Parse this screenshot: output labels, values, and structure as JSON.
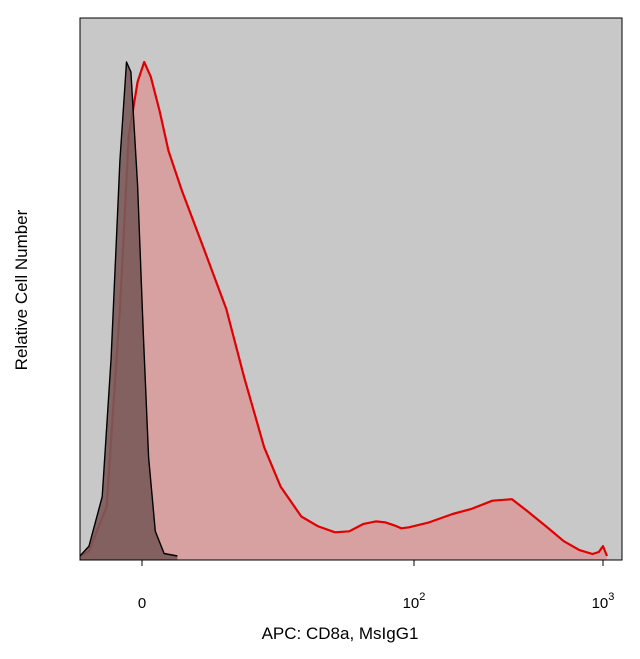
{
  "chart_data": {
    "type": "area",
    "xlabel": "APC: CD8a, MsIgG1",
    "ylabel": "Relative Cell Number",
    "x_scale": "biexponential",
    "x_ticks": [
      {
        "value": 0,
        "label": "0",
        "sup": ""
      },
      {
        "value": 100,
        "label": "10",
        "sup": "2"
      },
      {
        "value": 1000,
        "label": "10",
        "sup": "3"
      }
    ],
    "ylim": [
      0,
      1
    ],
    "grid": false,
    "legend": "none",
    "background": "#c8c8c8",
    "series": [
      {
        "style": "isotype",
        "stroke": "#000000",
        "fill": "#7a5a5a",
        "points": [
          [
            -20,
            0
          ],
          [
            -12,
            0.02
          ],
          [
            -9,
            0.12
          ],
          [
            -7,
            0.4
          ],
          [
            -5,
            0.8
          ],
          [
            -3.5,
            1.0
          ],
          [
            -2.5,
            0.98
          ],
          [
            -1,
            0.75
          ],
          [
            0.3,
            0.45
          ],
          [
            1.5,
            0.2
          ],
          [
            3,
            0.05
          ],
          [
            5,
            0.005
          ],
          [
            8,
            0
          ]
        ]
      },
      {
        "style": "stained",
        "stroke": "#e00000",
        "fill": "#d99a9a",
        "points": [
          [
            -20,
            0
          ],
          [
            -12,
            0.01
          ],
          [
            -8,
            0.1
          ],
          [
            -5,
            0.5
          ],
          [
            -3,
            0.85
          ],
          [
            -1,
            0.96
          ],
          [
            0.5,
            1.0
          ],
          [
            2,
            0.97
          ],
          [
            4,
            0.9
          ],
          [
            6,
            0.82
          ],
          [
            9,
            0.74
          ],
          [
            12,
            0.62
          ],
          [
            15,
            0.5
          ],
          [
            18,
            0.36
          ],
          [
            22,
            0.22
          ],
          [
            26,
            0.14
          ],
          [
            32,
            0.08
          ],
          [
            38,
            0.06
          ],
          [
            45,
            0.048
          ],
          [
            52,
            0.05
          ],
          [
            60,
            0.065
          ],
          [
            68,
            0.07
          ],
          [
            75,
            0.068
          ],
          [
            82,
            0.062
          ],
          [
            88,
            0.056
          ],
          [
            95,
            0.058
          ],
          [
            120,
            0.068
          ],
          [
            160,
            0.085
          ],
          [
            200,
            0.095
          ],
          [
            260,
            0.112
          ],
          [
            330,
            0.115
          ],
          [
            400,
            0.09
          ],
          [
            500,
            0.06
          ],
          [
            620,
            0.03
          ],
          [
            750,
            0.012
          ],
          [
            880,
            0.004
          ],
          [
            950,
            0.008
          ],
          [
            1000,
            0.02
          ],
          [
            1050,
            0
          ]
        ]
      }
    ]
  }
}
